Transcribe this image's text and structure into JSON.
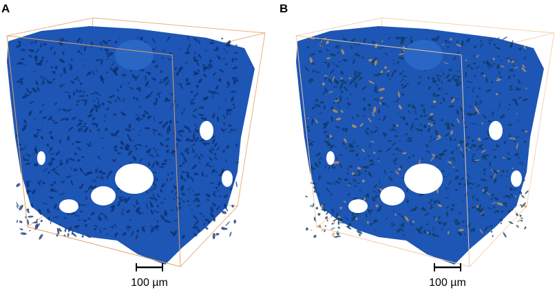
{
  "panels": [
    {
      "label": "A",
      "scale_bar": "100 µm"
    },
    {
      "label": "B",
      "scale_bar": "100 µm"
    }
  ]
}
